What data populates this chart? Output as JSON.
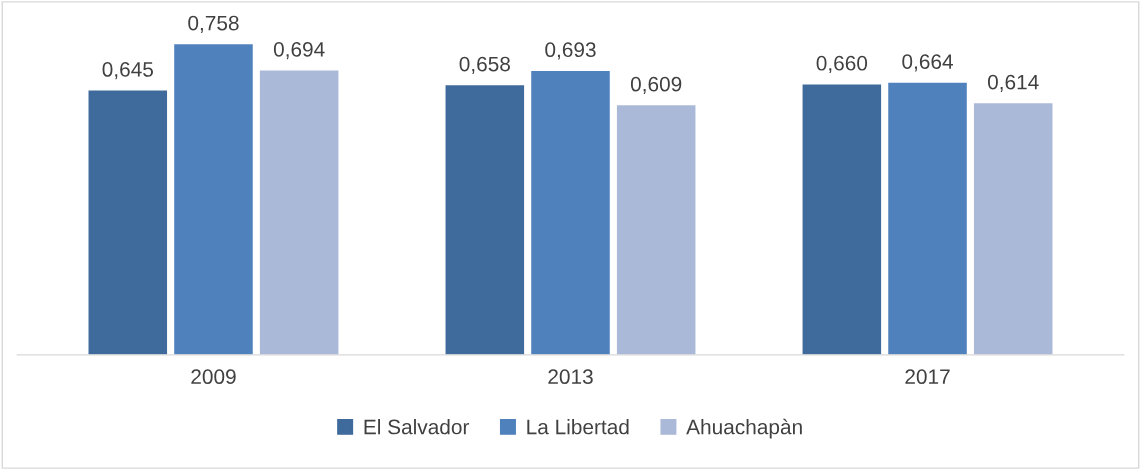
{
  "chart_data": {
    "type": "bar",
    "categories": [
      "2009",
      "2013",
      "2017"
    ],
    "series": [
      {
        "name": "El Salvador",
        "color": "#3f6a9c",
        "values": [
          0.645,
          0.658,
          0.66
        ],
        "value_labels": [
          "0,645",
          "0,658",
          "0,660"
        ]
      },
      {
        "name": "La Libertad",
        "color": "#4f81bd",
        "values": [
          0.758,
          0.693,
          0.664
        ],
        "value_labels": [
          "0,758",
          "0,693",
          "0,664"
        ]
      },
      {
        "name": "Ahuachapàn",
        "color": "#abb9d8",
        "values": [
          0.694,
          0.609,
          0.614
        ],
        "value_labels": [
          "0,694",
          "0,609",
          "0,614"
        ]
      }
    ],
    "legend": "bottom",
    "tick_labels": "x"
  }
}
